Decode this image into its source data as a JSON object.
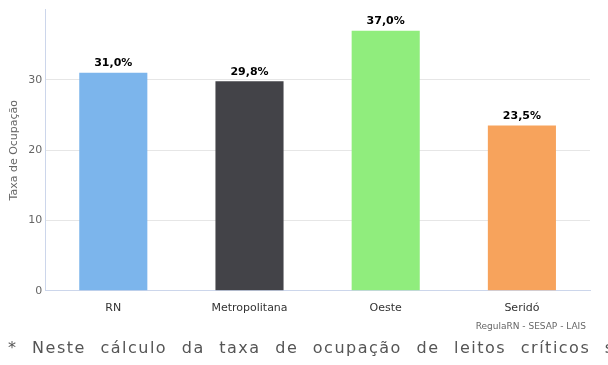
{
  "chart_data": {
    "type": "bar",
    "y_label": "Taxa de Ocupação",
    "categories": [
      "RN",
      "Metropolitana",
      "Oeste",
      "Seridó"
    ],
    "values": [
      31.0,
      29.8,
      37.0,
      23.5
    ],
    "value_labels": [
      "31,0%",
      "29,8%",
      "37,0%",
      "23,5%"
    ],
    "colors": [
      "#7cb5ec",
      "#434348",
      "#90ed7d",
      "#f7a35c"
    ],
    "ylim": [
      0,
      40
    ],
    "yticks": [
      0,
      10,
      20,
      30
    ],
    "grid": true,
    "data_labels": true,
    "annotations": [
      "RegulaRN - SESAP - LAIS",
      "* Neste cálculo da taxa de ocupação de leitos críticos são"
    ]
  }
}
